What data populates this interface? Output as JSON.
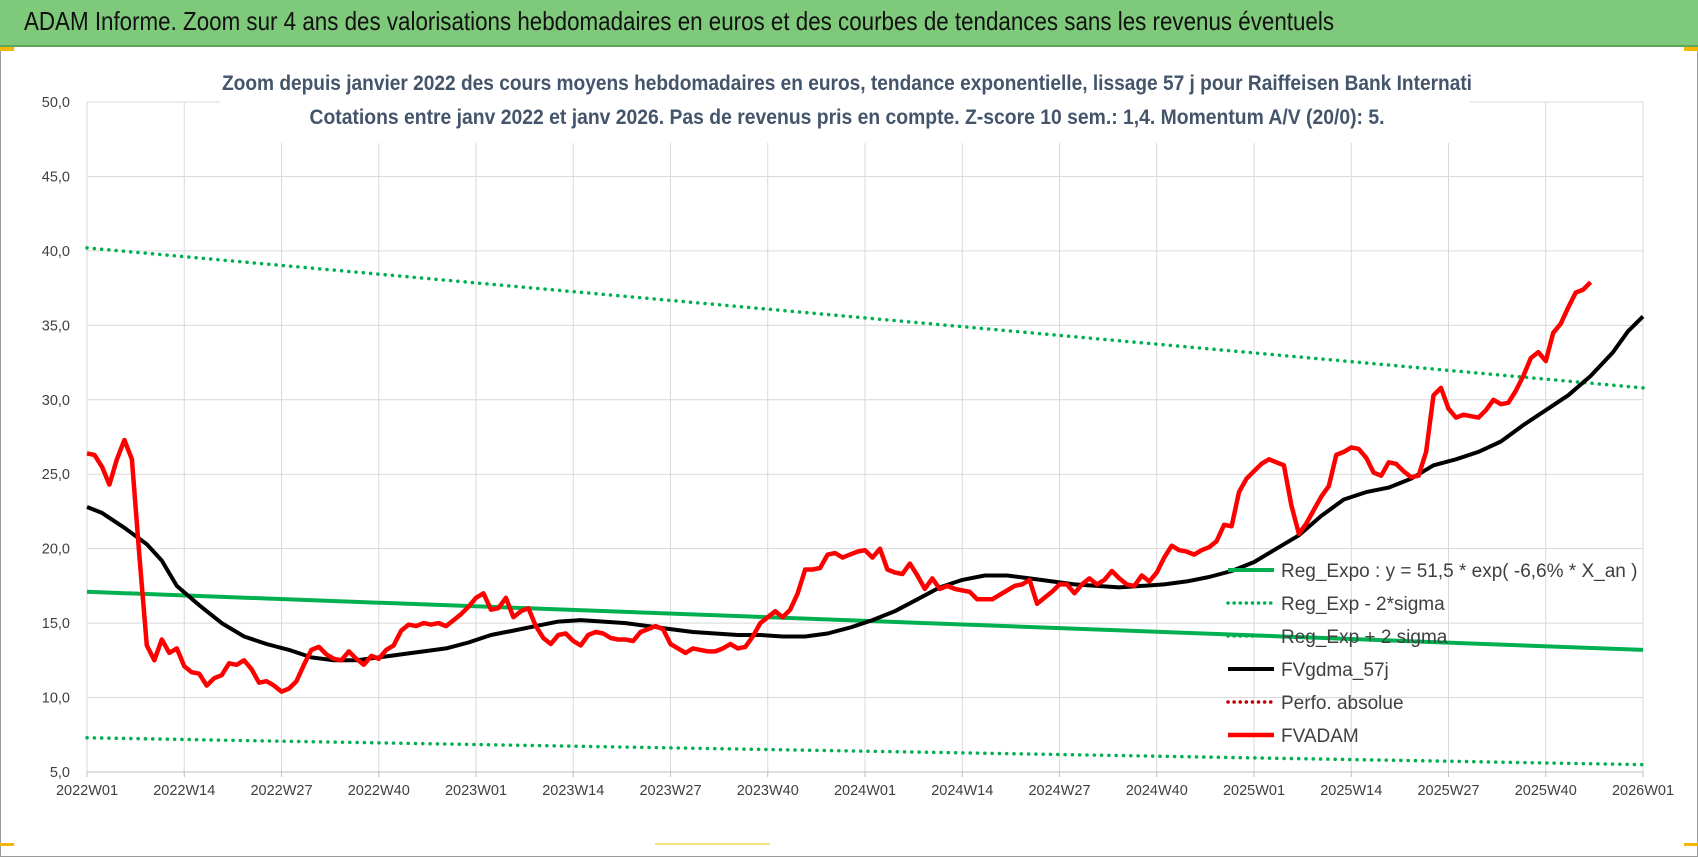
{
  "header": {
    "title": "ADAM Informe. Zoom sur 4 ans des valorisations hebdomadaires en euros et des courbes de tendances sans les revenus éventuels"
  },
  "colors": {
    "banner": "#7fc97a",
    "trend": "#00b050",
    "smooth": "#000000",
    "price": "#ff0000",
    "perfo": "#c00000",
    "title_text": "#44546a"
  },
  "chart_data": {
    "type": "line",
    "title": "Zoom depuis janvier 2022 des cours moyens hebdomadaires en euros, tendance exponentielle, lissage 57 j pour Raiffeisen Bank Internati",
    "subtitle": "Cotations entre janv 2022 et janv 2026. Pas de revenus pris en compte. Z-score 10 sem.: 1,4. Momentum A/V (20/0): 5.",
    "xlabel": "",
    "ylabel": "",
    "ylim": [
      5,
      50
    ],
    "y_ticks": [
      "5,0",
      "10,0",
      "15,0",
      "20,0",
      "25,0",
      "30,0",
      "35,0",
      "40,0",
      "45,0",
      "50,0"
    ],
    "x_ticks": [
      "2022W01",
      "2022W14",
      "2022W27",
      "2022W40",
      "2023W01",
      "2023W14",
      "2023W27",
      "2023W40",
      "2024W01",
      "2024W14",
      "2024W27",
      "2024W40",
      "2025W01",
      "2025W14",
      "2025W27",
      "2025W40",
      "2026W01"
    ],
    "x_range_weeks": [
      0,
      208
    ],
    "grid": true,
    "legend_position": "right",
    "series": [
      {
        "name": "Reg_Expo : y = 51,5 * exp( -6,6% *  X_an )",
        "style": "solid",
        "color": "#00b050",
        "points": [
          [
            0,
            17.1
          ],
          [
            208,
            13.2
          ]
        ]
      },
      {
        "name": "Reg_Exp - 2*sigma",
        "style": "dotted",
        "color": "#00b050",
        "points": [
          [
            0,
            7.3
          ],
          [
            208,
            5.5
          ]
        ]
      },
      {
        "name": "Reg_Exp + 2 sigma",
        "style": "dotted",
        "color": "#00b050",
        "points": [
          [
            0,
            40.2
          ],
          [
            208,
            30.8
          ]
        ]
      },
      {
        "name": "FVgdma_57j",
        "style": "solid",
        "color": "#000000",
        "points": [
          [
            0,
            22.8
          ],
          [
            2,
            22.4
          ],
          [
            5,
            21.4
          ],
          [
            8,
            20.3
          ],
          [
            10,
            19.2
          ],
          [
            12,
            17.5
          ],
          [
            15,
            16.2
          ],
          [
            18,
            15.0
          ],
          [
            21,
            14.1
          ],
          [
            24,
            13.6
          ],
          [
            27,
            13.2
          ],
          [
            30,
            12.7
          ],
          [
            33,
            12.5
          ],
          [
            36,
            12.5
          ],
          [
            39,
            12.7
          ],
          [
            42,
            12.9
          ],
          [
            45,
            13.1
          ],
          [
            48,
            13.3
          ],
          [
            51,
            13.7
          ],
          [
            54,
            14.2
          ],
          [
            57,
            14.5
          ],
          [
            60,
            14.8
          ],
          [
            63,
            15.1
          ],
          [
            66,
            15.2
          ],
          [
            69,
            15.1
          ],
          [
            72,
            15.0
          ],
          [
            75,
            14.8
          ],
          [
            78,
            14.6
          ],
          [
            81,
            14.4
          ],
          [
            84,
            14.3
          ],
          [
            87,
            14.2
          ],
          [
            90,
            14.2
          ],
          [
            93,
            14.1
          ],
          [
            96,
            14.1
          ],
          [
            99,
            14.3
          ],
          [
            102,
            14.7
          ],
          [
            105,
            15.2
          ],
          [
            108,
            15.8
          ],
          [
            111,
            16.6
          ],
          [
            114,
            17.4
          ],
          [
            117,
            17.9
          ],
          [
            120,
            18.2
          ],
          [
            123,
            18.2
          ],
          [
            126,
            18.0
          ],
          [
            129,
            17.8
          ],
          [
            132,
            17.6
          ],
          [
            135,
            17.5
          ],
          [
            138,
            17.4
          ],
          [
            141,
            17.5
          ],
          [
            144,
            17.6
          ],
          [
            147,
            17.8
          ],
          [
            150,
            18.1
          ],
          [
            153,
            18.5
          ],
          [
            156,
            19.1
          ],
          [
            159,
            20.0
          ],
          [
            162,
            20.9
          ],
          [
            165,
            22.2
          ],
          [
            168,
            23.3
          ],
          [
            171,
            23.8
          ],
          [
            174,
            24.1
          ],
          [
            177,
            24.7
          ],
          [
            180,
            25.6
          ],
          [
            183,
            26.0
          ],
          [
            186,
            26.5
          ],
          [
            189,
            27.2
          ],
          [
            192,
            28.3
          ],
          [
            195,
            29.3
          ],
          [
            198,
            30.3
          ],
          [
            201,
            31.6
          ],
          [
            204,
            33.2
          ],
          [
            206,
            34.6
          ],
          [
            208,
            35.6
          ]
        ]
      },
      {
        "name": "Perfo. absolue",
        "style": "dotted",
        "color": "#c00000",
        "points": []
      },
      {
        "name": "FVADAM",
        "style": "solid-thick",
        "color": "#ff0000",
        "points": [
          [
            0,
            26.4
          ],
          [
            1,
            26.3
          ],
          [
            2,
            25.5
          ],
          [
            3,
            24.3
          ],
          [
            4,
            26.0
          ],
          [
            5,
            27.3
          ],
          [
            6,
            26.0
          ],
          [
            7,
            19.5
          ],
          [
            8,
            13.5
          ],
          [
            9,
            12.5
          ],
          [
            10,
            13.9
          ],
          [
            11,
            13.0
          ],
          [
            12,
            13.3
          ],
          [
            13,
            12.1
          ],
          [
            14,
            11.7
          ],
          [
            15,
            11.6
          ],
          [
            16,
            10.8
          ],
          [
            17,
            11.3
          ],
          [
            18,
            11.5
          ],
          [
            19,
            12.3
          ],
          [
            20,
            12.2
          ],
          [
            21,
            12.5
          ],
          [
            22,
            11.9
          ],
          [
            23,
            11.0
          ],
          [
            24,
            11.1
          ],
          [
            25,
            10.8
          ],
          [
            26,
            10.4
          ],
          [
            27,
            10.6
          ],
          [
            28,
            11.1
          ],
          [
            29,
            12.2
          ],
          [
            30,
            13.2
          ],
          [
            31,
            13.4
          ],
          [
            32,
            12.9
          ],
          [
            33,
            12.6
          ],
          [
            34,
            12.5
          ],
          [
            35,
            13.1
          ],
          [
            36,
            12.6
          ],
          [
            37,
            12.2
          ],
          [
            38,
            12.8
          ],
          [
            39,
            12.6
          ],
          [
            40,
            13.2
          ],
          [
            41,
            13.5
          ],
          [
            42,
            14.5
          ],
          [
            43,
            14.9
          ],
          [
            44,
            14.8
          ],
          [
            45,
            15.0
          ],
          [
            46,
            14.9
          ],
          [
            47,
            15.0
          ],
          [
            48,
            14.8
          ],
          [
            49,
            15.2
          ],
          [
            50,
            15.6
          ],
          [
            51,
            16.1
          ],
          [
            52,
            16.7
          ],
          [
            53,
            17.0
          ],
          [
            54,
            15.9
          ],
          [
            55,
            16.0
          ],
          [
            56,
            16.7
          ],
          [
            57,
            15.4
          ],
          [
            58,
            15.8
          ],
          [
            59,
            16.0
          ],
          [
            60,
            14.8
          ],
          [
            61,
            14.0
          ],
          [
            62,
            13.6
          ],
          [
            63,
            14.2
          ],
          [
            64,
            14.3
          ],
          [
            65,
            13.8
          ],
          [
            66,
            13.5
          ],
          [
            67,
            14.2
          ],
          [
            68,
            14.4
          ],
          [
            69,
            14.3
          ],
          [
            70,
            14.0
          ],
          [
            71,
            13.9
          ],
          [
            72,
            13.9
          ],
          [
            73,
            13.8
          ],
          [
            74,
            14.4
          ],
          [
            75,
            14.6
          ],
          [
            76,
            14.8
          ],
          [
            77,
            14.6
          ],
          [
            78,
            13.6
          ],
          [
            79,
            13.3
          ],
          [
            80,
            13.0
          ],
          [
            81,
            13.3
          ],
          [
            82,
            13.2
          ],
          [
            83,
            13.1
          ],
          [
            84,
            13.1
          ],
          [
            85,
            13.3
          ],
          [
            86,
            13.6
          ],
          [
            87,
            13.3
          ],
          [
            88,
            13.4
          ],
          [
            89,
            14.1
          ],
          [
            90,
            15.0
          ],
          [
            91,
            15.4
          ],
          [
            92,
            15.8
          ],
          [
            93,
            15.4
          ],
          [
            94,
            15.9
          ],
          [
            95,
            17.0
          ],
          [
            96,
            18.6
          ],
          [
            97,
            18.6
          ],
          [
            98,
            18.7
          ],
          [
            99,
            19.6
          ],
          [
            100,
            19.7
          ],
          [
            101,
            19.4
          ],
          [
            102,
            19.6
          ],
          [
            103,
            19.8
          ],
          [
            104,
            19.9
          ],
          [
            105,
            19.4
          ],
          [
            106,
            20.0
          ],
          [
            107,
            18.6
          ],
          [
            108,
            18.4
          ],
          [
            109,
            18.3
          ],
          [
            110,
            19.0
          ],
          [
            111,
            18.2
          ],
          [
            112,
            17.3
          ],
          [
            113,
            18.0
          ],
          [
            114,
            17.3
          ],
          [
            115,
            17.5
          ],
          [
            116,
            17.3
          ],
          [
            117,
            17.2
          ],
          [
            118,
            17.1
          ],
          [
            119,
            16.6
          ],
          [
            120,
            16.6
          ],
          [
            121,
            16.6
          ],
          [
            122,
            16.9
          ],
          [
            123,
            17.2
          ],
          [
            124,
            17.5
          ],
          [
            125,
            17.6
          ],
          [
            126,
            17.9
          ],
          [
            127,
            16.3
          ],
          [
            128,
            16.7
          ],
          [
            129,
            17.1
          ],
          [
            130,
            17.6
          ],
          [
            131,
            17.6
          ],
          [
            132,
            17.0
          ],
          [
            133,
            17.6
          ],
          [
            134,
            18.0
          ],
          [
            135,
            17.6
          ],
          [
            136,
            17.9
          ],
          [
            137,
            18.5
          ],
          [
            138,
            18.0
          ],
          [
            139,
            17.6
          ],
          [
            140,
            17.5
          ],
          [
            141,
            18.2
          ],
          [
            142,
            17.8
          ],
          [
            143,
            18.4
          ],
          [
            144,
            19.4
          ],
          [
            145,
            20.2
          ],
          [
            146,
            19.9
          ],
          [
            147,
            19.8
          ],
          [
            148,
            19.6
          ],
          [
            149,
            19.9
          ],
          [
            150,
            20.1
          ],
          [
            151,
            20.5
          ],
          [
            152,
            21.6
          ],
          [
            153,
            21.5
          ],
          [
            154,
            23.8
          ],
          [
            155,
            24.7
          ],
          [
            156,
            25.2
          ],
          [
            157,
            25.7
          ],
          [
            158,
            26.0
          ],
          [
            159,
            25.8
          ],
          [
            160,
            25.6
          ],
          [
            161,
            22.9
          ],
          [
            162,
            21.0
          ],
          [
            163,
            21.7
          ],
          [
            164,
            22.6
          ],
          [
            165,
            23.5
          ],
          [
            166,
            24.2
          ],
          [
            167,
            26.3
          ],
          [
            168,
            26.5
          ],
          [
            169,
            26.8
          ],
          [
            170,
            26.7
          ],
          [
            171,
            26.1
          ],
          [
            172,
            25.1
          ],
          [
            173,
            24.9
          ],
          [
            174,
            25.8
          ],
          [
            175,
            25.7
          ],
          [
            176,
            25.2
          ],
          [
            177,
            24.8
          ],
          [
            178,
            24.9
          ],
          [
            179,
            26.5
          ],
          [
            180,
            30.3
          ],
          [
            181,
            30.8
          ],
          [
            182,
            29.4
          ],
          [
            183,
            28.8
          ],
          [
            184,
            29.0
          ],
          [
            185,
            28.9
          ],
          [
            186,
            28.8
          ],
          [
            187,
            29.3
          ],
          [
            188,
            30.0
          ],
          [
            189,
            29.7
          ],
          [
            190,
            29.8
          ],
          [
            191,
            30.6
          ],
          [
            192,
            31.6
          ],
          [
            193,
            32.8
          ],
          [
            194,
            33.2
          ],
          [
            195,
            32.6
          ],
          [
            196,
            34.5
          ],
          [
            197,
            35.1
          ],
          [
            198,
            36.2
          ],
          [
            199,
            37.2
          ],
          [
            200,
            37.4
          ],
          [
            201,
            37.9
          ]
        ]
      }
    ]
  }
}
